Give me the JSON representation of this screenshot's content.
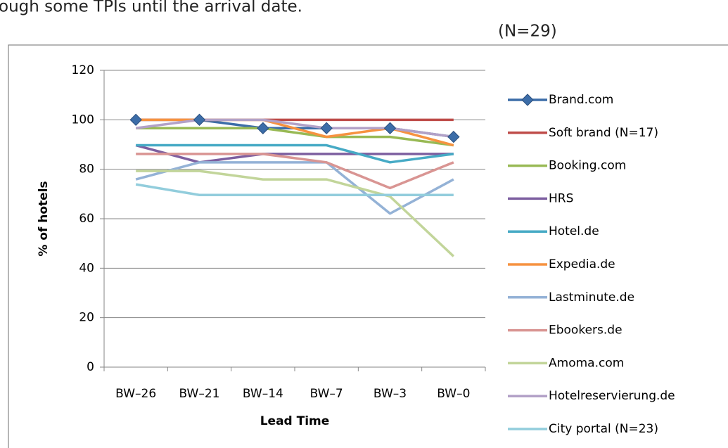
{
  "page_text": [
    "ough some TPIs until the arrival date.",
    "(N=29)"
  ],
  "chart_data": {
    "type": "line",
    "xlabel": "Lead Time",
    "ylabel": "% of hotels",
    "categories": [
      "BW–26",
      "BW–21",
      "BW–14",
      "BW–7",
      "BW–3",
      "BW–0"
    ],
    "ylim": [
      0,
      120
    ],
    "yticks": [
      0,
      20,
      40,
      60,
      80,
      100,
      120
    ],
    "grid": true,
    "legend": "right",
    "series": [
      {
        "name": "Brand.com",
        "color": "#3c6da8",
        "marker": "diamond",
        "values": [
          100,
          100,
          96.6,
          96.6,
          96.6,
          93.1
        ]
      },
      {
        "name": "Soft brand (N=17)",
        "color": "#be4b48",
        "values": [
          100,
          100,
          100,
          100,
          100,
          100
        ]
      },
      {
        "name": "Booking.com",
        "color": "#98b954",
        "values": [
          96.6,
          96.6,
          96.6,
          93.1,
          93.1,
          89.7
        ]
      },
      {
        "name": "HRS",
        "color": "#7d5fa0",
        "values": [
          89.7,
          82.8,
          86.2,
          86.2,
          86.2,
          86.2
        ]
      },
      {
        "name": "Hotel.de",
        "color": "#46aac5",
        "values": [
          89.7,
          89.7,
          89.7,
          89.7,
          82.8,
          86.2
        ]
      },
      {
        "name": "Expedia.de",
        "color": "#f69240",
        "values": [
          100,
          100,
          100,
          93.1,
          96.6,
          89.7
        ]
      },
      {
        "name": "Lastminute.de",
        "color": "#94b2d6",
        "values": [
          75.9,
          82.8,
          82.8,
          82.8,
          62.1,
          75.9
        ]
      },
      {
        "name": "Ebookers.de",
        "color": "#d99593",
        "values": [
          86.2,
          86.2,
          86.2,
          82.8,
          72.4,
          82.8
        ]
      },
      {
        "name": "Amoma.com",
        "color": "#c2d59a",
        "values": [
          79.3,
          79.3,
          75.9,
          75.9,
          69,
          44.8
        ]
      },
      {
        "name": "Hotelreservierung.de",
        "color": "#b2a1c7",
        "values": [
          96.6,
          100,
          100,
          96.6,
          96.6,
          93.1
        ]
      },
      {
        "name": "City portal (N=23)",
        "color": "#92cddc",
        "values": [
          73.9,
          69.6,
          69.6,
          69.6,
          69.6,
          69.6
        ]
      }
    ]
  }
}
